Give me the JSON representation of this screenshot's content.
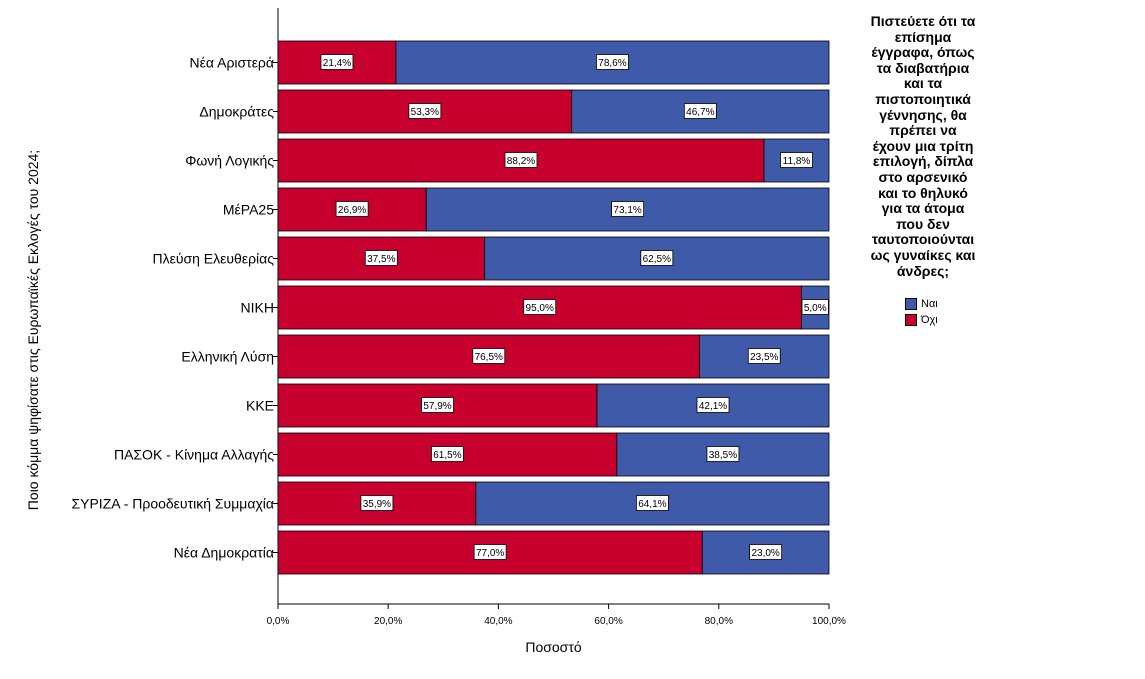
{
  "chart_data": {
    "type": "bar",
    "orientation": "horizontal",
    "stacked": "percent",
    "categories": [
      "Νέα Αριστερά",
      "Δημοκράτες",
      "Φωνή Λογικής",
      "ΜέΡΑ25",
      "Πλεύση Ελευθερίας",
      "ΝΙΚΗ",
      "Ελληνική Λύση",
      "ΚΚΕ",
      "ΠΑΣΟΚ - Κίνημα Αλλαγής",
      "ΣΥΡΙΖΑ - Προοδευτική Συμμαχία",
      "Νέα Δημοκρατία"
    ],
    "series": [
      {
        "name": "Όχι",
        "color": "#c8002e",
        "values": [
          21.4,
          53.3,
          88.2,
          26.9,
          37.5,
          95.0,
          76.5,
          57.9,
          61.5,
          35.9,
          77.0
        ],
        "labels": [
          "21,4%",
          "53,3%",
          "88,2%",
          "26,9%",
          "37,5%",
          "95,0%",
          "76,5%",
          "57,9%",
          "61,5%",
          "35,9%",
          "77,0%"
        ]
      },
      {
        "name": "Ναι",
        "color": "#3f5aa9",
        "values": [
          78.6,
          46.7,
          11.8,
          73.1,
          62.5,
          5.0,
          23.5,
          42.1,
          38.5,
          64.1,
          23.0
        ],
        "labels": [
          "78,6%",
          "46,7%",
          "11,8%",
          "73,1%",
          "62,5%",
          "5,0%",
          "23,5%",
          "42,1%",
          "38,5%",
          "64,1%",
          "23,0%"
        ]
      }
    ],
    "xlabel": "Ποσοστό",
    "ylabel": "Ποιο κόμμα ψηφίσατε στις Ευρωπαϊκές Εκλογές του 2024;",
    "xlim": [
      0,
      100
    ],
    "xticks": [
      0,
      20,
      40,
      60,
      80,
      100
    ],
    "xtick_labels": [
      "0,0%",
      "20,0%",
      "40,0%",
      "60,0%",
      "80,0%",
      "100,0%"
    ],
    "grid": false,
    "legend": {
      "position": "right",
      "title_lines": [
        "Πιστεύετε ότι τα",
        "επίσημα",
        "έγγραφα, όπως",
        "τα διαβατήρια",
        "και τα",
        "πιστοποιητικά",
        "γέννησης, θα",
        "πρέπει να",
        "έχουν μια τρίτη",
        "επιλογή, δίπλα",
        "στο αρσενικό",
        "και το θηλυκό",
        "για τα άτομα",
        "που δεν",
        "ταυτοποιούνται",
        "ως γυναίκες και",
        "άνδρες;"
      ],
      "entries": [
        {
          "label": "Ναι",
          "color": "#3f5aa9"
        },
        {
          "label": "Όχι",
          "color": "#c8002e"
        }
      ]
    }
  }
}
